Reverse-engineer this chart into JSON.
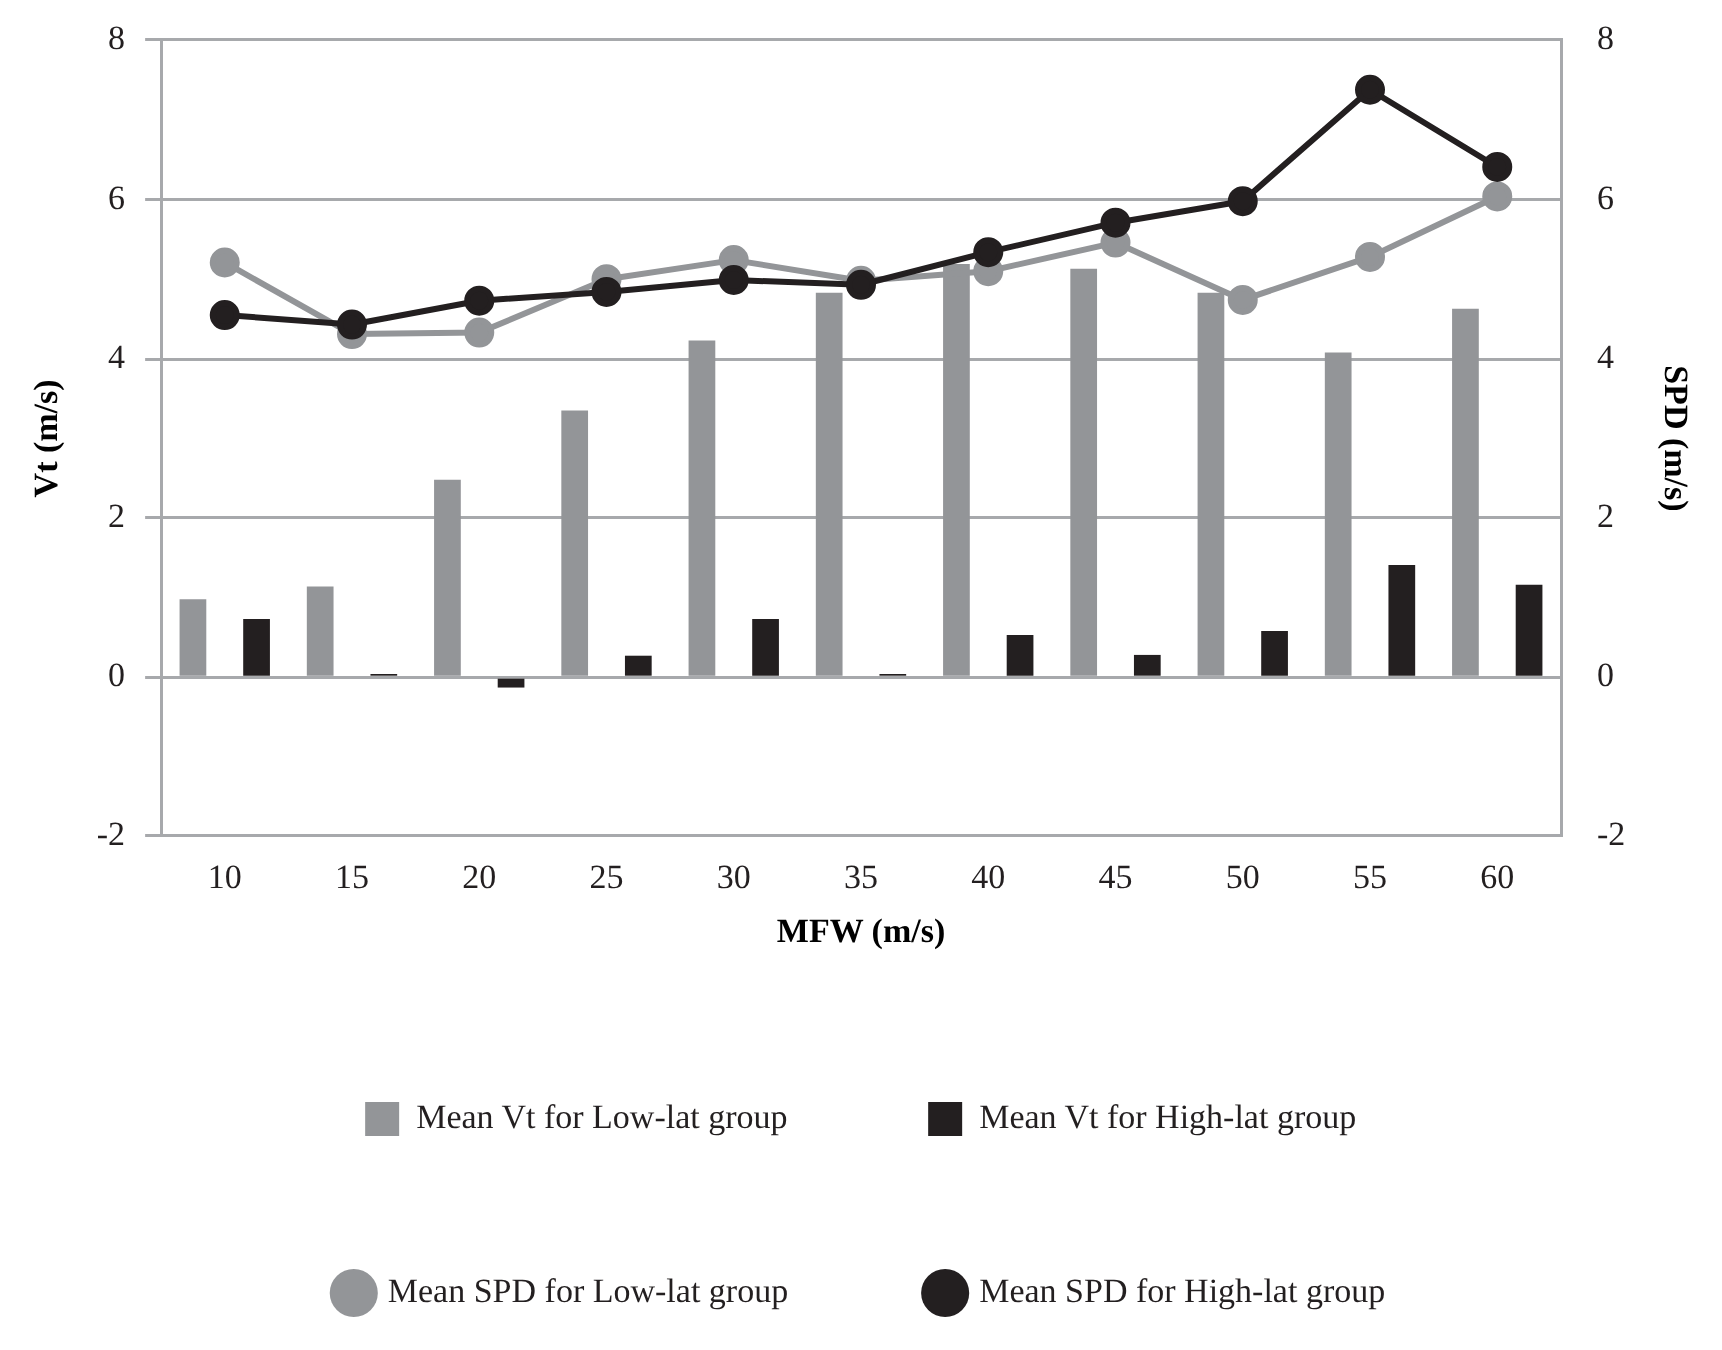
{
  "chart_data": {
    "type": "bar",
    "xlabel": "MFW (m/s)",
    "ylabel": "Vt (m/s)",
    "y2label": "SPD (m/s)",
    "categories": [
      "10",
      "15",
      "20",
      "25",
      "30",
      "35",
      "40",
      "45",
      "50",
      "55",
      "60"
    ],
    "series": [
      {
        "name": "Mean Vt for Low-lat group",
        "color": "#939598",
        "values": [
          0.98,
          1.14,
          2.48,
          3.35,
          4.23,
          4.83,
          5.19,
          5.13,
          4.83,
          4.08,
          4.63
        ]
      },
      {
        "name": "Mean Vt for High-lat group",
        "color": "#231f20",
        "values": [
          0.73,
          0.04,
          -0.13,
          0.27,
          0.73,
          0.04,
          0.53,
          0.28,
          0.58,
          1.41,
          1.16
        ]
      },
      {
        "name": "Mean SPD for Low-lat group",
        "type": "line",
        "axis": "y2",
        "marker": "circle",
        "color": "#939598",
        "values": [
          5.21,
          4.31,
          4.33,
          5.0,
          5.24,
          4.98,
          5.1,
          5.46,
          4.74,
          5.28,
          6.04
        ]
      },
      {
        "name": "Mean SPD for High-lat group",
        "type": "line",
        "axis": "y2",
        "marker": "circle",
        "color": "#231f20",
        "values": [
          4.55,
          4.43,
          4.73,
          4.84,
          4.99,
          4.93,
          5.34,
          5.71,
          5.98,
          7.38,
          6.41
        ]
      }
    ],
    "ylim": [
      -2,
      8
    ],
    "yticks": [
      -2,
      0,
      2,
      4,
      6,
      8
    ],
    "y2lim": [
      -2,
      8
    ],
    "y2ticks": [
      -2,
      0,
      2,
      4,
      6,
      8
    ],
    "grid": "y",
    "legend": "bottom"
  }
}
